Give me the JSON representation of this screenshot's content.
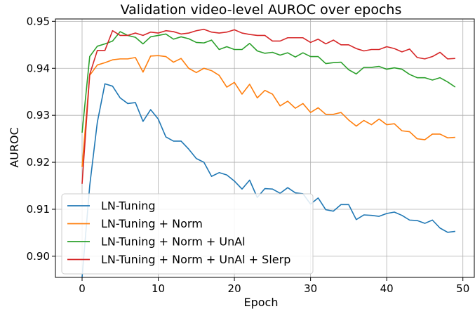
{
  "chart_data": {
    "type": "line",
    "title": "Validation video-level AUROC over epochs",
    "xlabel": "Epoch",
    "ylabel": "AUROC",
    "xlim": [
      -3.5,
      51.5
    ],
    "ylim": [
      0.8955,
      0.9505
    ],
    "xticks": [
      0,
      10,
      20,
      30,
      40,
      50
    ],
    "yticks": [
      0.9,
      0.91,
      0.92,
      0.93,
      0.94,
      0.95
    ],
    "xtick_labels": [
      "0",
      "10",
      "20",
      "30",
      "40",
      "50"
    ],
    "ytick_labels": [
      "0.90",
      "0.91",
      "0.92",
      "0.93",
      "0.94",
      "0.95"
    ],
    "grid": true,
    "legend_position": "lower-left",
    "x": [
      0,
      1,
      2,
      3,
      4,
      5,
      6,
      7,
      8,
      9,
      10,
      11,
      12,
      13,
      14,
      15,
      16,
      17,
      18,
      19,
      20,
      21,
      22,
      23,
      24,
      25,
      26,
      27,
      28,
      29,
      30,
      31,
      32,
      33,
      34,
      35,
      36,
      37,
      38,
      39,
      40,
      41,
      42,
      43,
      44,
      45,
      46,
      47,
      48,
      49
    ],
    "series": [
      {
        "name": "LN-Tuning",
        "color": "#1f77b4",
        "values": [
          0.8955,
          0.915,
          0.9285,
          0.9367,
          0.9362,
          0.9337,
          0.9325,
          0.9327,
          0.9287,
          0.9312,
          0.9292,
          0.9254,
          0.9245,
          0.9245,
          0.9228,
          0.9208,
          0.92,
          0.917,
          0.9178,
          0.9173,
          0.916,
          0.9143,
          0.9162,
          0.9125,
          0.9144,
          0.9143,
          0.9134,
          0.9146,
          0.9135,
          0.9133,
          0.9111,
          0.9124,
          0.9099,
          0.9096,
          0.911,
          0.911,
          0.9078,
          0.9088,
          0.9087,
          0.9085,
          0.9091,
          0.9094,
          0.9087,
          0.9077,
          0.9076,
          0.907,
          0.9077,
          0.906,
          0.9051,
          0.9053
        ]
      },
      {
        "name": "LN-Tuning + Norm",
        "color": "#ff7f0e",
        "values": [
          0.919,
          0.9385,
          0.9407,
          0.9412,
          0.9418,
          0.942,
          0.942,
          0.9423,
          0.9392,
          0.9426,
          0.9427,
          0.9425,
          0.9413,
          0.9421,
          0.94,
          0.9391,
          0.94,
          0.9395,
          0.9385,
          0.936,
          0.937,
          0.9345,
          0.9366,
          0.9337,
          0.9353,
          0.9345,
          0.932,
          0.933,
          0.9315,
          0.9325,
          0.9306,
          0.9316,
          0.9302,
          0.9302,
          0.9306,
          0.929,
          0.9277,
          0.9289,
          0.928,
          0.9292,
          0.928,
          0.9282,
          0.9267,
          0.9265,
          0.925,
          0.9248,
          0.926,
          0.926,
          0.9252,
          0.9253
        ]
      },
      {
        "name": "LN-Tuning + Norm + UnAl",
        "color": "#2ca02c",
        "values": [
          0.9263,
          0.9425,
          0.9447,
          0.9452,
          0.9458,
          0.9478,
          0.947,
          0.9466,
          0.9452,
          0.9467,
          0.947,
          0.9473,
          0.9462,
          0.9467,
          0.9463,
          0.9455,
          0.9454,
          0.946,
          0.944,
          0.9446,
          0.944,
          0.944,
          0.9453,
          0.9437,
          0.9432,
          0.9434,
          0.9428,
          0.9433,
          0.9424,
          0.9433,
          0.9425,
          0.9425,
          0.941,
          0.9412,
          0.9413,
          0.9397,
          0.9388,
          0.9402,
          0.9402,
          0.9404,
          0.9398,
          0.9401,
          0.9398,
          0.9387,
          0.938,
          0.938,
          0.9375,
          0.938,
          0.9371,
          0.936
        ]
      },
      {
        "name": "LN-Tuning + Norm + UnAl + Slerp",
        "color": "#d62728",
        "values": [
          0.9154,
          0.9387,
          0.9438,
          0.9438,
          0.948,
          0.947,
          0.947,
          0.9475,
          0.947,
          0.9477,
          0.9475,
          0.948,
          0.9478,
          0.9473,
          0.9475,
          0.948,
          0.9483,
          0.9477,
          0.9475,
          0.9477,
          0.9482,
          0.9475,
          0.9472,
          0.947,
          0.947,
          0.9458,
          0.9458,
          0.9465,
          0.9465,
          0.9465,
          0.9455,
          0.9462,
          0.9452,
          0.946,
          0.945,
          0.945,
          0.9442,
          0.9437,
          0.944,
          0.944,
          0.9446,
          0.9442,
          0.9435,
          0.9441,
          0.9423,
          0.942,
          0.9425,
          0.9434,
          0.942,
          0.9421
        ]
      }
    ]
  }
}
